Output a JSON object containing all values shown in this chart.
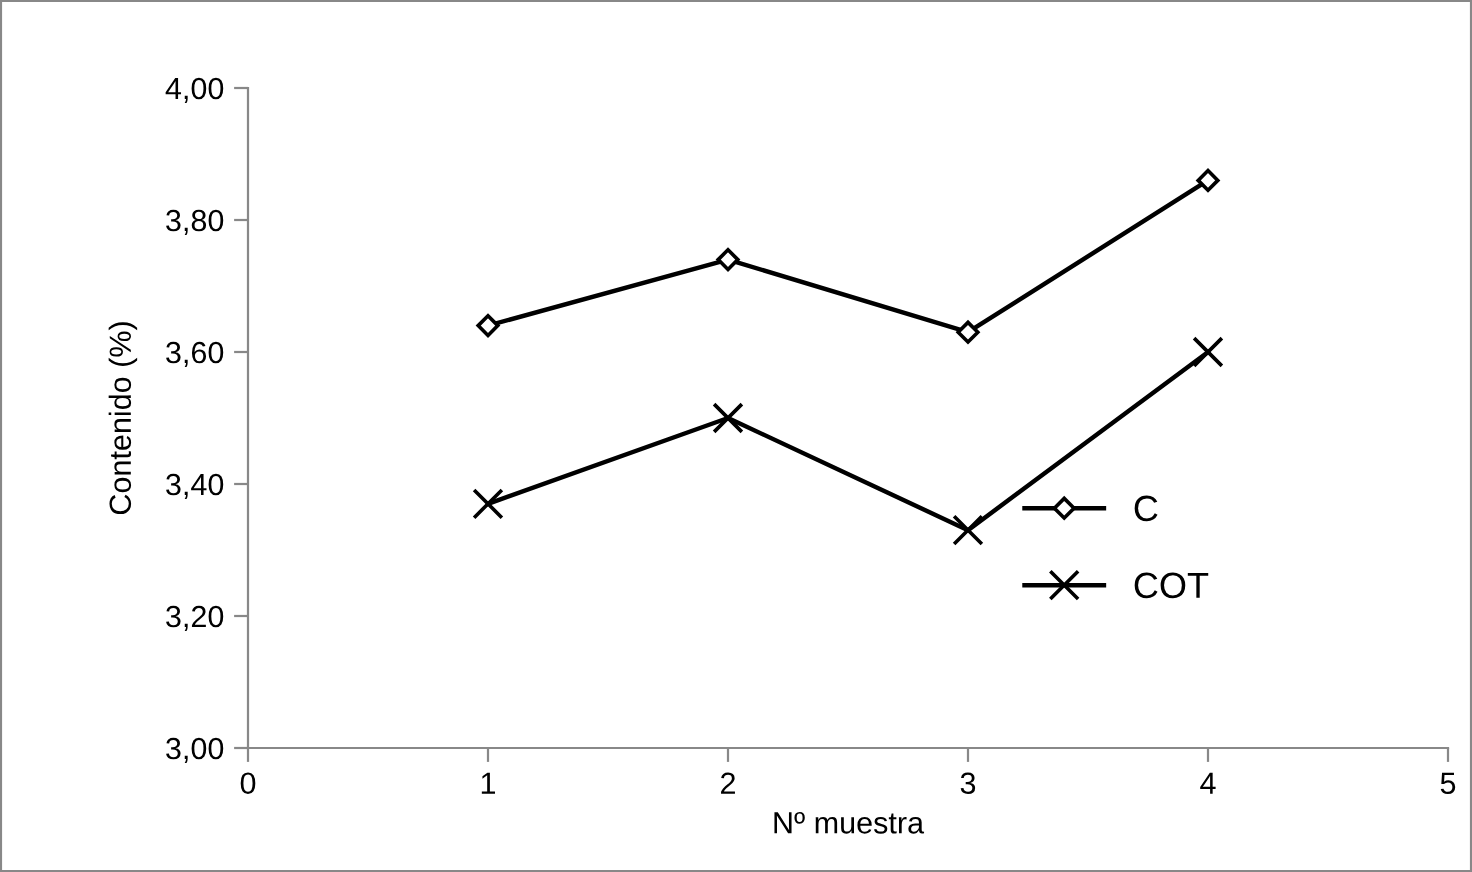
{
  "chart_data": {
    "type": "line",
    "xlabel": "Nº muestra",
    "ylabel": "Contenido (%)",
    "x": [
      1,
      2,
      3,
      4
    ],
    "series": [
      {
        "name": "C",
        "color": "#000000",
        "marker": "diamond",
        "values": [
          3.64,
          3.74,
          3.63,
          3.86
        ]
      },
      {
        "name": "COT",
        "color": "#000000",
        "marker": "cross",
        "values": [
          3.37,
          3.5,
          3.33,
          3.6
        ]
      }
    ],
    "xlim": [
      0,
      5
    ],
    "xticks": [
      0,
      1,
      2,
      3,
      4,
      5
    ],
    "ylim": [
      3.0,
      4.0
    ],
    "yticks": [
      {
        "value": 3.0,
        "label": "3,00"
      },
      {
        "value": 3.2,
        "label": "3,20"
      },
      {
        "value": 3.4,
        "label": "3,40"
      },
      {
        "value": 3.6,
        "label": "3,60"
      },
      {
        "value": 3.8,
        "label": "3,80"
      },
      {
        "value": 4.0,
        "label": "4,00"
      }
    ],
    "grid": false,
    "legend": "right",
    "line_style": "solid"
  }
}
